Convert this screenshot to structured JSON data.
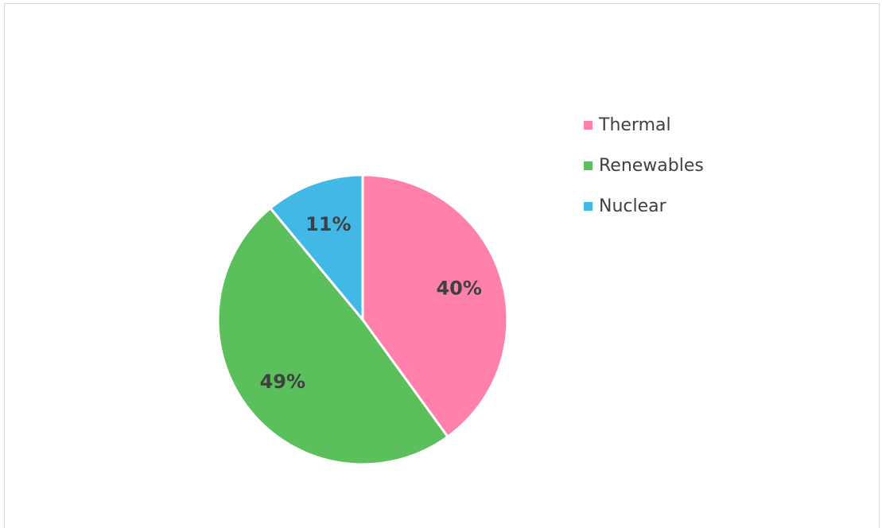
{
  "chart_data": {
    "type": "pie",
    "categories": [
      "Thermal",
      "Renewables",
      "Nuclear"
    ],
    "values": [
      40,
      49,
      11
    ],
    "data_labels": [
      "40%",
      "49%",
      "11%"
    ],
    "colors": [
      "#ff80ab",
      "#5bbf5b",
      "#41b8e6"
    ],
    "title": "",
    "legend_placement": "right"
  }
}
